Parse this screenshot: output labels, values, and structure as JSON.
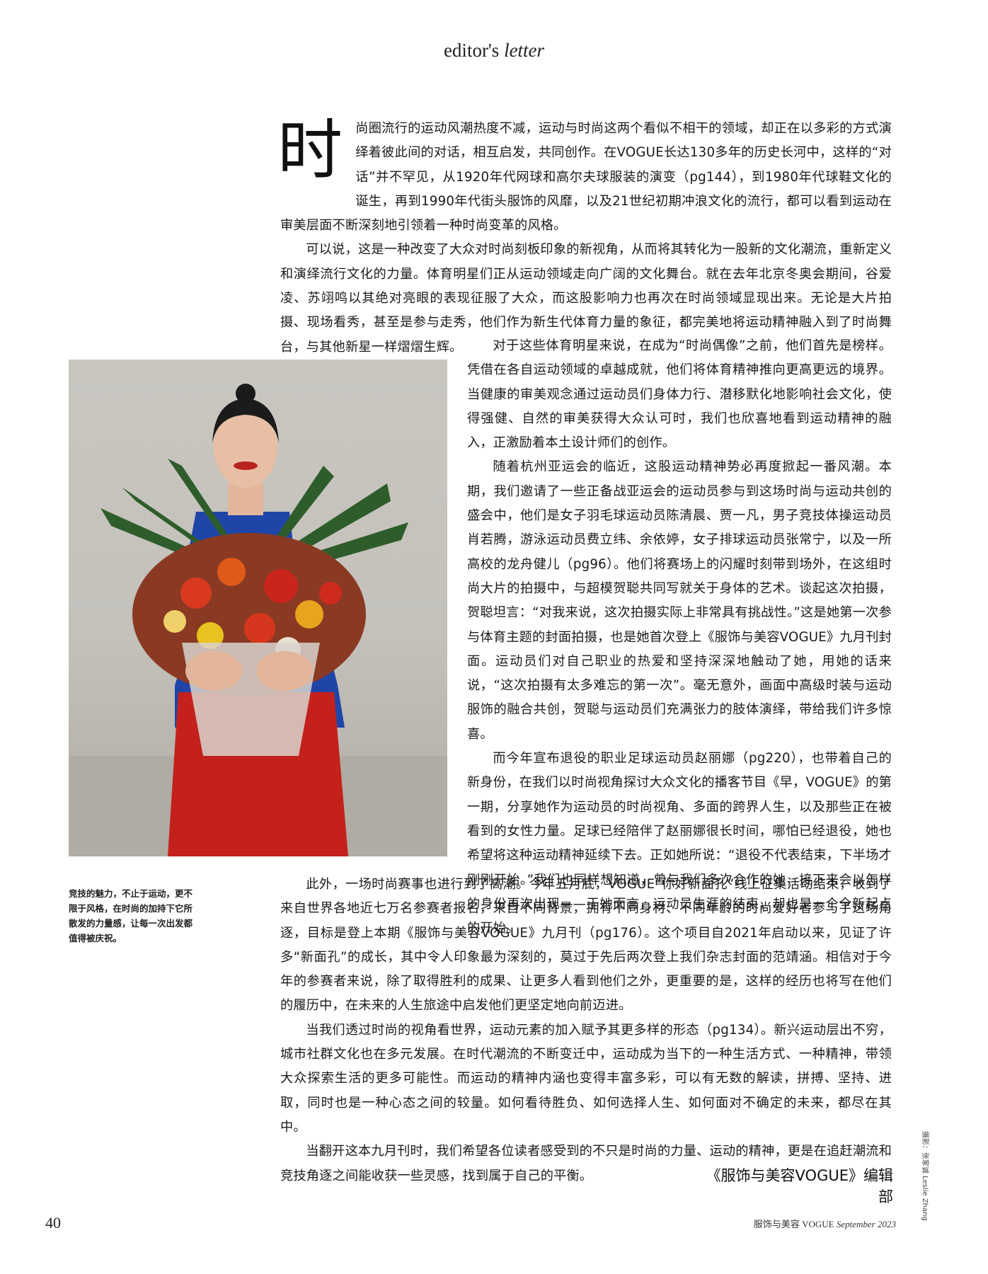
{
  "header": {
    "title_plain": "editor's",
    "title_italic": "letter"
  },
  "article": {
    "dropcap": "时",
    "p1": "尚圈流行的运动风潮热度不减，运动与时尚这两个看似不相干的领域，却正在以多彩的方式演绎着彼此间的对话，相互启发，共同创作。在VOGUE长达130多年的历史长河中，这样的“对话”并不罕见，从1920年代网球和高尔夫球服装的演变（pg144），到1980年代球鞋文化的诞生，再到1990年代街头服饰的风靡，以及21世纪初期冲浪文化的流行，都可以看到运动在审美层面不断深刻地引领着一种时尚变革的风格。",
    "p2": "可以说，这是一种改变了大众对时尚刻板印象的新视角，从而将其转化为一股新的文化潮流，重新定义和演绎流行文化的力量。体育明星们正从运动领域走向广阔的文化舞台。就在去年北京冬奥会期间，谷爱凌、苏翊鸣以其绝对亮眼的表现征服了大众，而这股影响力也再次在时尚领域显现出来。无论是大片拍摄、现场看秀，甚至是参与走秀，他们作为新生代体育力量的象征，都完美地将运动精神融入到了时尚舞台，与其他新星一样熠熠生辉。",
    "p3": "对于这些体育明星来说，在成为“时尚偶像”之前，他们首先是榜样。凭借在各自运动领域的卓越成就，他们将体育精神推向更高更远的境界。当健康的审美观念通过运动员们身体力行、潜移默化地影响社会文化，使得强健、自然的审美获得大众认可时，我们也欣喜地看到运动精神的融入，正激励着本土设计师们的创作。",
    "p4": "随着杭州亚运会的临近，这股运动精神势必再度掀起一番风潮。本期，我们邀请了一些正备战亚运会的运动员参与到这场时尚与运动共创的盛会中，他们是女子羽毛球运动员陈清晨、贾一凡，男子竞技体操运动员肖若腾，游泳运动员费立纬、余依婷，女子排球运动员张常宁，以及一所高校的龙舟健儿（pg96）。他们将赛场上的闪耀时刻带到场外，在这组时尚大片的拍摄中，与超模贺聪共同写就关于身体的艺术。谈起这次拍摄，贺聪坦言：“对我来说，这次拍摄实际上非常具有挑战性。”这是她第一次参与体育主题的封面拍摄，也是她首次登上《服饰与美容VOGUE》九月刊封面。运动员们对自己职业的热爱和坚持深深地触动了她，用她的话来说，“这次拍摄有太多难忘的第一次”。毫无意外，画面中高级时装与运动服饰的融合共创，贺聪与运动员们充满张力的肢体演绎，带给我们许多惊喜。",
    "p5": "而今年宣布退役的职业足球运动员赵丽娜（pg220），也带着自己的新身份，在我们以时尚视角探讨大众文化的播客节目《早，VOGUE》的第一期，分享她作为运动员的时尚视角、多面的跨界人生，以及那些正在被看到的女性力量。足球已经陪伴了赵丽娜很长时间，哪怕已经退役，她也希望将这种运动精神延续下去。正如她所说：“退役不代表结束，下半场才刚刚开始。”我们也同样想知道，曾与我们多次合作的她，接下来会以怎样的身份再次出现——于她而言，运动员生涯的结束，却也是一个全新起点的开始。",
    "p6": "此外，一场时尚赛事也进行到了高潮。今年五月底，VOGUE“你好新面孔”线上征集活动结束，收到了来自世界各地近七万名参赛者报名，来自不同背景，拥有不同身材、不同年龄的时尚爱好者参与了这场角逐，目标是登上本期《服饰与美容VOGUE》九月刊（pg176）。这个项目自2021年启动以来，见证了许多“新面孔”的成长，其中令人印象最为深刻的，莫过于先后两次登上我们杂志封面的范靖涵。相信对于今年的参赛者来说，除了取得胜利的成果、让更多人看到他们之外，更重要的是，这样的经历也将写在他们的履历中，在未来的人生旅途中启发他们更坚定地向前迈进。",
    "p7": "当我们透过时尚的视角看世界，运动元素的加入赋予其更多样的形态（pg134）。新兴运动层出不穷，城市社群文化也在多元发展。在时代潮流的不断变迁中，运动成为当下的一种生活方式、一种精神，带领大众探索生活的更多可能性。而运动的精神内涵也变得丰富多彩，可以有无数的解读，拼搏、坚持、进取，同时也是一种心态之间的较量。如何看待胜负、如何选择人生、如何面对不确定的未来，都尽在其中。",
    "p8": "当翻开这本九月刊时，我们希望各位读者感受到的不只是时尚的力量、运动的精神，更是在追赶潮流和竞技角逐之间能收获一些灵感，找到属于自己的平衡。"
  },
  "caption": "竞技的魅力，不止于运动，更不限于风格，在时尚的加持下它所散发的力量感，让每一次出发都值得被庆祝。",
  "signature": "《服饰与美容VOGUE》编辑部",
  "photo_credit": "摄影：张家诚 Leslie Zhang",
  "footer": {
    "page_number": "40",
    "magazine": "服饰与美容 VOGUE",
    "issue": "September 2023"
  },
  "colors": {
    "sweater": "#1f45a8",
    "skirt": "#c4211c",
    "background": "#c6c3bd",
    "lips": "#b8221f"
  }
}
